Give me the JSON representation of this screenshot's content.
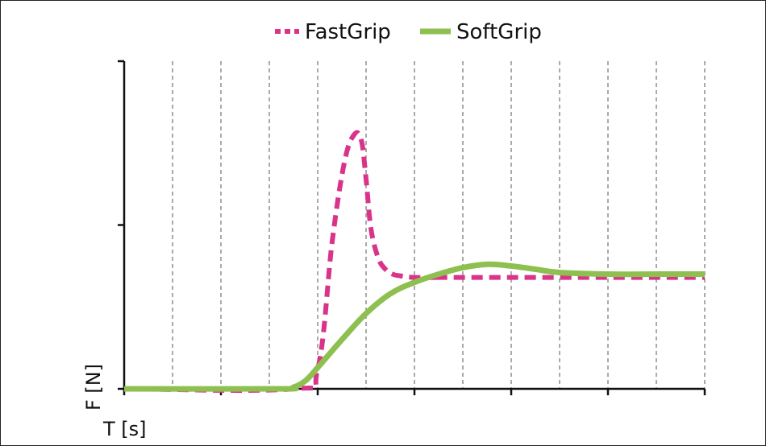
{
  "chart_data": {
    "type": "line",
    "title": "",
    "xlabel": "T [s]",
    "ylabel": "F [N]",
    "grid": true,
    "legend_position": "top",
    "x_ticks": [
      0,
      1,
      2,
      3,
      4,
      5,
      6,
      7,
      8,
      9,
      10,
      11,
      12
    ],
    "y_ticks": [
      0,
      1,
      2
    ],
    "xlim": [
      0,
      12
    ],
    "ylim": [
      0,
      2
    ],
    "series": [
      {
        "name": "FastGrip",
        "color": "#d9348a",
        "style": "dashed",
        "x": [
          0,
          3.5,
          4.0,
          4.3,
          4.55,
          4.75,
          4.9,
          5.0,
          5.1,
          5.25,
          5.4,
          5.55,
          5.7,
          6.0,
          6.5,
          7.0,
          12.0
        ],
        "y": [
          0.0,
          0.0,
          0.12,
          0.9,
          1.38,
          1.55,
          1.52,
          1.28,
          0.98,
          0.8,
          0.73,
          0.7,
          0.69,
          0.68,
          0.68,
          0.68,
          0.68
        ]
      },
      {
        "name": "SoftGrip",
        "color": "#8dc04f",
        "style": "solid",
        "x": [
          0,
          3.2,
          3.5,
          3.75,
          4.0,
          4.5,
          5.0,
          5.5,
          6.0,
          6.5,
          7.0,
          7.5,
          8.0,
          8.5,
          9.0,
          10.0,
          11.0,
          12.0
        ],
        "y": [
          0.0,
          0.0,
          0.01,
          0.05,
          0.13,
          0.3,
          0.46,
          0.58,
          0.65,
          0.7,
          0.74,
          0.76,
          0.75,
          0.73,
          0.71,
          0.7,
          0.7,
          0.7
        ]
      }
    ]
  }
}
